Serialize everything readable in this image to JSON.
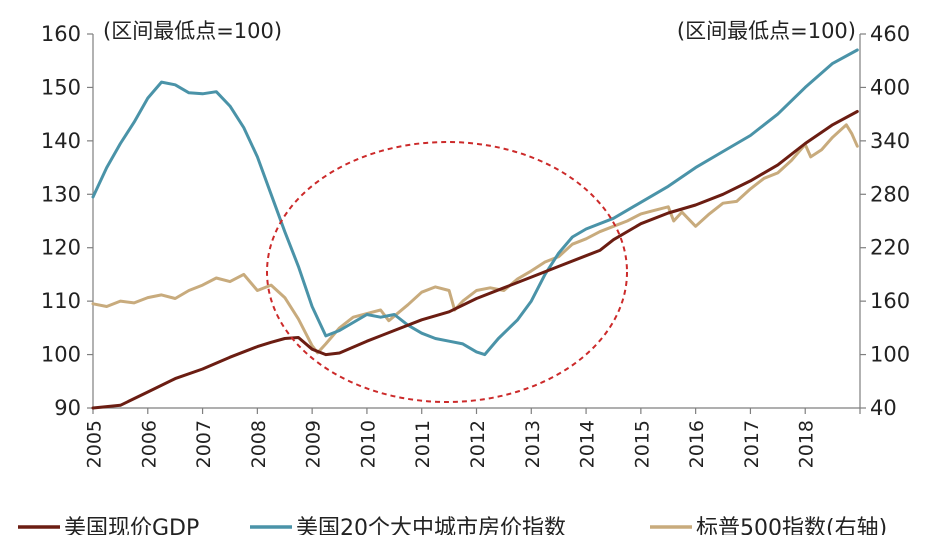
{
  "chart_data": {
    "type": "line",
    "left_axis": {
      "ylim": [
        90,
        160
      ],
      "ticks": [
        "160",
        "150",
        "140",
        "130",
        "120",
        "110",
        "100",
        "90"
      ]
    },
    "right_axis": {
      "ylim": [
        40,
        460
      ],
      "ticks": [
        "460",
        "400",
        "340",
        "280",
        "220",
        "160",
        "100",
        "40"
      ]
    },
    "left_note": "(区间最低点=100)",
    "right_note": "(区间最低点=100)",
    "x_ticks": [
      "2005",
      "2006",
      "2007",
      "2008",
      "2009",
      "2010",
      "2011",
      "2012",
      "2013",
      "2014",
      "2015",
      "2016",
      "2017",
      "2018"
    ],
    "x_range": [
      2005.0,
      2019.0
    ],
    "series": [
      {
        "name": "美国现价GDP",
        "axis": "left",
        "color": "#6b1d12",
        "points": [
          [
            2005.0,
            88.2
          ],
          [
            2005.5,
            90.5
          ],
          [
            2006.0,
            93.0
          ],
          [
            2006.5,
            95.5
          ],
          [
            2007.0,
            97.3
          ],
          [
            2007.5,
            99.5
          ],
          [
            2008.0,
            101.5
          ],
          [
            2008.25,
            102.3
          ],
          [
            2008.5,
            103.0
          ],
          [
            2008.75,
            103.2
          ],
          [
            2009.0,
            101.0
          ],
          [
            2009.25,
            100.0
          ],
          [
            2009.5,
            100.3
          ],
          [
            2010.0,
            102.5
          ],
          [
            2010.5,
            104.5
          ],
          [
            2011.0,
            106.5
          ],
          [
            2011.5,
            108.0
          ],
          [
            2012.0,
            110.5
          ],
          [
            2012.5,
            112.5
          ],
          [
            2013.0,
            114.5
          ],
          [
            2013.5,
            116.5
          ],
          [
            2014.0,
            118.5
          ],
          [
            2014.25,
            119.5
          ],
          [
            2014.5,
            121.5
          ],
          [
            2015.0,
            124.5
          ],
          [
            2015.5,
            126.5
          ],
          [
            2016.0,
            128.0
          ],
          [
            2016.5,
            130.0
          ],
          [
            2017.0,
            132.5
          ],
          [
            2017.5,
            135.5
          ],
          [
            2018.0,
            139.5
          ],
          [
            2018.5,
            143.0
          ],
          [
            2018.95,
            145.5
          ]
        ]
      },
      {
        "name": "美国20个大中城市房价指数",
        "axis": "left",
        "color": "#4a93a8",
        "points": [
          [
            2005.0,
            129.5
          ],
          [
            2005.25,
            135.0
          ],
          [
            2005.5,
            139.5
          ],
          [
            2005.75,
            143.5
          ],
          [
            2006.0,
            148.0
          ],
          [
            2006.25,
            151.0
          ],
          [
            2006.5,
            150.5
          ],
          [
            2006.75,
            149.0
          ],
          [
            2007.0,
            148.8
          ],
          [
            2007.25,
            149.2
          ],
          [
            2007.5,
            146.5
          ],
          [
            2007.75,
            142.5
          ],
          [
            2008.0,
            137.0
          ],
          [
            2008.25,
            130.0
          ],
          [
            2008.5,
            123.0
          ],
          [
            2008.75,
            116.5
          ],
          [
            2009.0,
            109.0
          ],
          [
            2009.25,
            103.5
          ],
          [
            2009.5,
            104.5
          ],
          [
            2009.75,
            106.0
          ],
          [
            2010.0,
            107.5
          ],
          [
            2010.25,
            107.0
          ],
          [
            2010.5,
            107.5
          ],
          [
            2010.75,
            105.5
          ],
          [
            2011.0,
            104.0
          ],
          [
            2011.25,
            103.0
          ],
          [
            2011.5,
            102.5
          ],
          [
            2011.75,
            102.0
          ],
          [
            2012.0,
            100.5
          ],
          [
            2012.15,
            100.0
          ],
          [
            2012.4,
            103.0
          ],
          [
            2012.75,
            106.5
          ],
          [
            2013.0,
            110.0
          ],
          [
            2013.25,
            115.0
          ],
          [
            2013.5,
            119.0
          ],
          [
            2013.75,
            122.0
          ],
          [
            2014.0,
            123.5
          ],
          [
            2014.5,
            125.5
          ],
          [
            2015.0,
            128.5
          ],
          [
            2015.5,
            131.5
          ],
          [
            2016.0,
            135.0
          ],
          [
            2016.5,
            138.0
          ],
          [
            2017.0,
            141.0
          ],
          [
            2017.5,
            145.0
          ],
          [
            2018.0,
            150.0
          ],
          [
            2018.5,
            154.5
          ],
          [
            2018.95,
            157.0
          ]
        ]
      },
      {
        "name": "标普500指数(右轴)",
        "axis": "right",
        "color": "#c8ab7d",
        "points": [
          [
            2005.0,
            157
          ],
          [
            2005.25,
            154
          ],
          [
            2005.5,
            160
          ],
          [
            2005.75,
            158
          ],
          [
            2006.0,
            164
          ],
          [
            2006.25,
            167
          ],
          [
            2006.5,
            163
          ],
          [
            2006.75,
            172
          ],
          [
            2007.0,
            178
          ],
          [
            2007.25,
            186
          ],
          [
            2007.5,
            182
          ],
          [
            2007.75,
            190
          ],
          [
            2008.0,
            172
          ],
          [
            2008.25,
            178
          ],
          [
            2008.5,
            164
          ],
          [
            2008.75,
            140
          ],
          [
            2009.0,
            110
          ],
          [
            2009.1,
            102
          ],
          [
            2009.25,
            112
          ],
          [
            2009.5,
            130
          ],
          [
            2009.75,
            142
          ],
          [
            2010.0,
            146
          ],
          [
            2010.25,
            150
          ],
          [
            2010.4,
            138
          ],
          [
            2010.75,
            156
          ],
          [
            2011.0,
            170
          ],
          [
            2011.25,
            176
          ],
          [
            2011.5,
            172
          ],
          [
            2011.6,
            150
          ],
          [
            2011.75,
            160
          ],
          [
            2012.0,
            172
          ],
          [
            2012.25,
            175
          ],
          [
            2012.5,
            172
          ],
          [
            2012.75,
            185
          ],
          [
            2013.0,
            194
          ],
          [
            2013.25,
            204
          ],
          [
            2013.5,
            210
          ],
          [
            2013.75,
            224
          ],
          [
            2014.0,
            230
          ],
          [
            2014.25,
            238
          ],
          [
            2014.5,
            244
          ],
          [
            2014.75,
            250
          ],
          [
            2015.0,
            258
          ],
          [
            2015.25,
            262
          ],
          [
            2015.5,
            266
          ],
          [
            2015.6,
            250
          ],
          [
            2015.75,
            260
          ],
          [
            2016.0,
            244
          ],
          [
            2016.25,
            258
          ],
          [
            2016.5,
            270
          ],
          [
            2016.75,
            272
          ],
          [
            2017.0,
            286
          ],
          [
            2017.25,
            298
          ],
          [
            2017.5,
            304
          ],
          [
            2017.75,
            318
          ],
          [
            2018.0,
            336
          ],
          [
            2018.1,
            322
          ],
          [
            2018.3,
            330
          ],
          [
            2018.5,
            344
          ],
          [
            2018.75,
            358
          ],
          [
            2018.85,
            348
          ],
          [
            2018.95,
            334
          ]
        ]
      }
    ],
    "annotation": {
      "shape": "ellipse",
      "style": "dashed",
      "color": "#cc2a2a"
    }
  }
}
